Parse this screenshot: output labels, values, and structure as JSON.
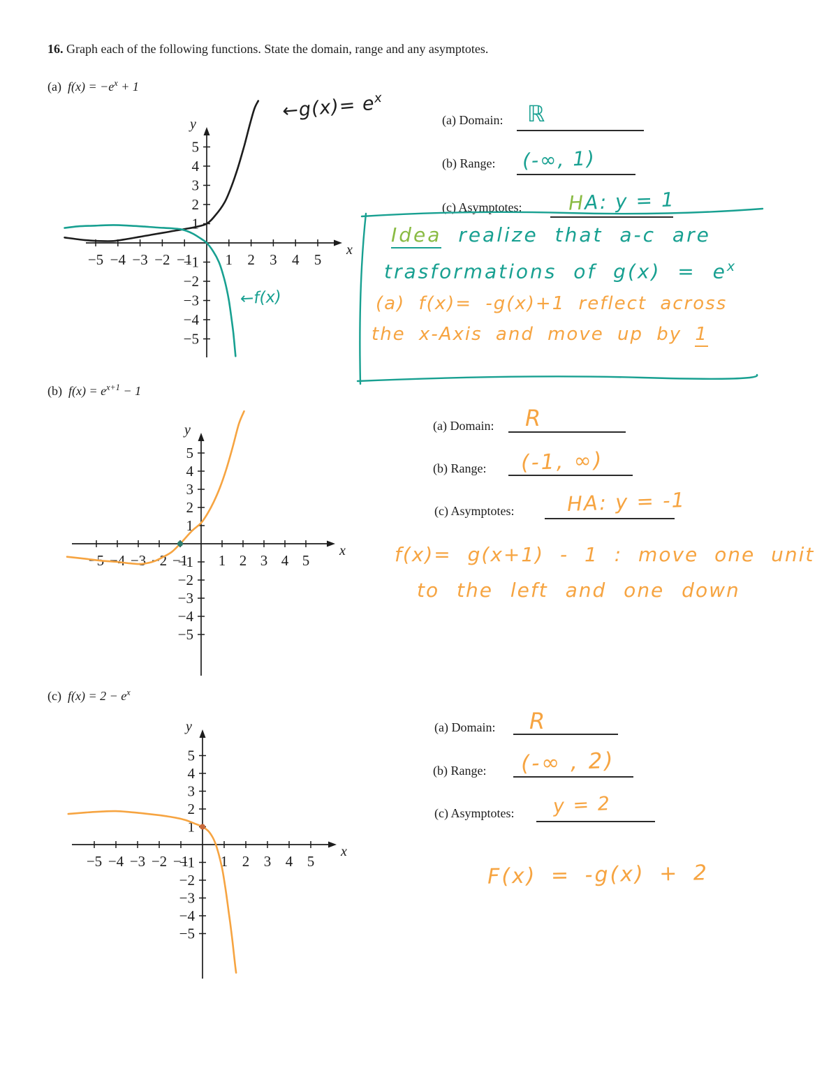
{
  "colors": {
    "teal": "#18a091",
    "orange": "#f6a441",
    "green": "#8abb44",
    "ink": "#1d1d1d"
  },
  "title": {
    "number": "16.",
    "text": " Graph each of the following functions. State the domain, range and any asymptotes."
  },
  "section_a": {
    "label": "(a)",
    "formula_pre": "f(x) = −e",
    "formula_sup": "x",
    "formula_post": " + 1",
    "g_label_pre": "←g(x)= e",
    "g_label_sup": "x",
    "f_label": "←f(x)",
    "domain_label": "(a) Domain:",
    "domain_value": "ℝ",
    "range_label": "(b) Range:",
    "range_value": "(-∞, 1)",
    "asym_label": "(c) Asymptotes:",
    "asym_h": "H",
    "asym_rest": "A: y = 1",
    "note_line1_word": "Idea",
    "note_line1_rest": " realize that a-c are",
    "note_line2_pre": "trasformations of g(x) = e",
    "note_line2_sup": "x",
    "note_line3": "(a) f(x)= -g(x)+1   reflect across",
    "note_line4_pre": "the x-Axis and move up by ",
    "note_line4_num": "1"
  },
  "section_b": {
    "label": "(b)",
    "formula_pre": "f(x) = e",
    "formula_sup": "x+1",
    "formula_post": " − 1",
    "domain_label": "(a) Domain:",
    "domain_value": "R",
    "range_label": "(b) Range:",
    "range_value": "(-1, ∞)",
    "asym_label": "(c) Asymptotes:",
    "asym_value": "HA: y = -1",
    "note_line1": "f(x)= g(x+1) - 1 :  move one unit",
    "note_line2": "to the left and one down"
  },
  "section_c": {
    "label": "(c)",
    "formula_pre": "f(x) = 2 − e",
    "formula_sup": "x",
    "formula_post": "",
    "domain_label": "(a) Domain:",
    "domain_value": "R",
    "range_label": "(b) Range:",
    "range_value": "(-∞ , 2)",
    "asym_label": "(c) Asymptotes:",
    "asym_value": "y = 2",
    "note_line1": "F(x) = -g(x) + 2"
  },
  "chart_data": [
    {
      "type": "line",
      "title": "f(x) = -e^x + 1 with g(x) = e^x",
      "xlabel": "x",
      "ylabel": "y",
      "xlim": [
        -6.5,
        6.1
      ],
      "ylim": [
        -6.9,
        7.6
      ],
      "x_ticks": [
        -5,
        -4,
        -3,
        -2,
        -1,
        1,
        2,
        3,
        4,
        5
      ],
      "y_ticks": [
        5,
        4,
        3,
        2,
        1,
        -1,
        -2,
        -3,
        -4,
        -5
      ],
      "grid": false,
      "legend": "handwritten arrows on curves",
      "asymptote_of_f": "y = 1",
      "series": [
        {
          "name": "g(x) = e^x",
          "key": "g",
          "color": "#1d1d1d",
          "width": 2.6,
          "points": [
            [
              -6.4,
              0.28
            ],
            [
              -5.5,
              0.15
            ],
            [
              -4.8,
              0.1
            ],
            [
              -4.2,
              0.1
            ],
            [
              -3.6,
              0.2
            ],
            [
              -3,
              0.32
            ],
            [
              -2.5,
              0.42
            ],
            [
              -2,
              0.52
            ],
            [
              -1.5,
              0.62
            ],
            [
              -1,
              0.72
            ],
            [
              -0.5,
              0.83
            ],
            [
              0,
              1.0
            ],
            [
              0.4,
              1.45
            ],
            [
              0.8,
              2.1
            ],
            [
              1.1,
              2.9
            ],
            [
              1.4,
              3.9
            ],
            [
              1.7,
              5.1
            ],
            [
              1.95,
              6.2
            ],
            [
              2.15,
              7.0
            ],
            [
              2.32,
              7.4
            ]
          ]
        },
        {
          "name": "f(x) = -e^x + 1",
          "key": "f",
          "color": "#18a091",
          "width": 2.6,
          "points": [
            [
              -6.4,
              0.78
            ],
            [
              -5.8,
              0.86
            ],
            [
              -5,
              0.9
            ],
            [
              -4.2,
              0.93
            ],
            [
              -3.5,
              0.9
            ],
            [
              -2.8,
              0.85
            ],
            [
              -2.2,
              0.8
            ],
            [
              -1.6,
              0.76
            ],
            [
              -1.2,
              0.72
            ],
            [
              -0.9,
              0.62
            ],
            [
              -0.6,
              0.47
            ],
            [
              -0.3,
              0.25
            ],
            [
              0,
              0
            ],
            [
              0.3,
              -0.45
            ],
            [
              0.55,
              -1.0
            ],
            [
              0.75,
              -1.7
            ],
            [
              0.9,
              -2.4
            ],
            [
              1.0,
              -3.0
            ],
            [
              1.1,
              -3.8
            ],
            [
              1.2,
              -4.7
            ],
            [
              1.3,
              -5.9
            ]
          ]
        }
      ],
      "markers": []
    },
    {
      "type": "line",
      "title": "f(x) = e^(x+1) - 1",
      "xlabel": "x",
      "ylabel": "y",
      "xlim": [
        -6.2,
        6.4
      ],
      "ylim": [
        -7.3,
        6.1
      ],
      "x_ticks": [
        -5,
        -4,
        -3,
        -2,
        -1,
        1,
        2,
        3,
        4,
        5
      ],
      "y_ticks": [
        5,
        4,
        3,
        2,
        1,
        -1,
        -2,
        -3,
        -4,
        -5
      ],
      "grid": false,
      "asymptote_of_f": "y = -1",
      "series": [
        {
          "name": "f(x) = e^(x+1) - 1",
          "key": "f",
          "color": "#f6a441",
          "width": 2.6,
          "points": [
            [
              -6.4,
              -0.72
            ],
            [
              -5.6,
              -0.82
            ],
            [
              -4.8,
              -0.93
            ],
            [
              -4,
              -1.0
            ],
            [
              -3.4,
              -1.08
            ],
            [
              -2.9,
              -1.12
            ],
            [
              -2.5,
              -1.05
            ],
            [
              -2.2,
              -0.95
            ],
            [
              -1.8,
              -0.72
            ],
            [
              -1.4,
              -0.45
            ],
            [
              -1,
              0
            ],
            [
              -0.7,
              0.38
            ],
            [
              -0.4,
              0.75
            ],
            [
              0,
              1.15
            ],
            [
              0.3,
              1.65
            ],
            [
              0.6,
              2.3
            ],
            [
              0.9,
              3.1
            ],
            [
              1.2,
              4.1
            ],
            [
              1.5,
              5.3
            ],
            [
              1.8,
              6.6
            ],
            [
              2.05,
              7.3
            ]
          ]
        }
      ],
      "markers": [
        {
          "x": -1,
          "y": 0,
          "r": 4,
          "color": "#2e7d6e",
          "meaning": "x-intercept dot"
        }
      ]
    },
    {
      "type": "line",
      "title": "f(x) = 2 - e^x",
      "xlabel": "x",
      "ylabel": "y",
      "xlim": [
        -6.0,
        6.2
      ],
      "ylim": [
        -7.5,
        6.5
      ],
      "x_ticks": [
        -5,
        -4,
        -3,
        -2,
        -1,
        1,
        2,
        3,
        4,
        5
      ],
      "y_ticks": [
        5,
        4,
        3,
        2,
        1,
        -1,
        -2,
        -3,
        -4,
        -5
      ],
      "grid": false,
      "asymptote_of_f": "y = 2",
      "series": [
        {
          "name": "f(x) = 2 - e^x",
          "key": "f",
          "color": "#f6a441",
          "width": 2.6,
          "points": [
            [
              -6.2,
              1.72
            ],
            [
              -5.4,
              1.8
            ],
            [
              -4.6,
              1.86
            ],
            [
              -4,
              1.88
            ],
            [
              -3.4,
              1.83
            ],
            [
              -2.8,
              1.76
            ],
            [
              -2.2,
              1.68
            ],
            [
              -1.7,
              1.6
            ],
            [
              -1.2,
              1.5
            ],
            [
              -0.8,
              1.38
            ],
            [
              -0.4,
              1.2
            ],
            [
              0,
              1.0
            ],
            [
              0.25,
              0.78
            ],
            [
              0.45,
              0.45
            ],
            [
              0.6,
              0.05
            ],
            [
              0.75,
              -0.55
            ],
            [
              0.9,
              -1.3
            ],
            [
              1.0,
              -2.0
            ],
            [
              1.1,
              -2.8
            ],
            [
              1.2,
              -3.7
            ],
            [
              1.3,
              -4.6
            ],
            [
              1.4,
              -5.6
            ],
            [
              1.5,
              -6.7
            ],
            [
              1.55,
              -7.2
            ]
          ]
        }
      ],
      "markers": [
        {
          "x": 0,
          "y": 1,
          "r": 4,
          "color": "#c8693a",
          "meaning": "y-intercept dot"
        }
      ]
    }
  ]
}
